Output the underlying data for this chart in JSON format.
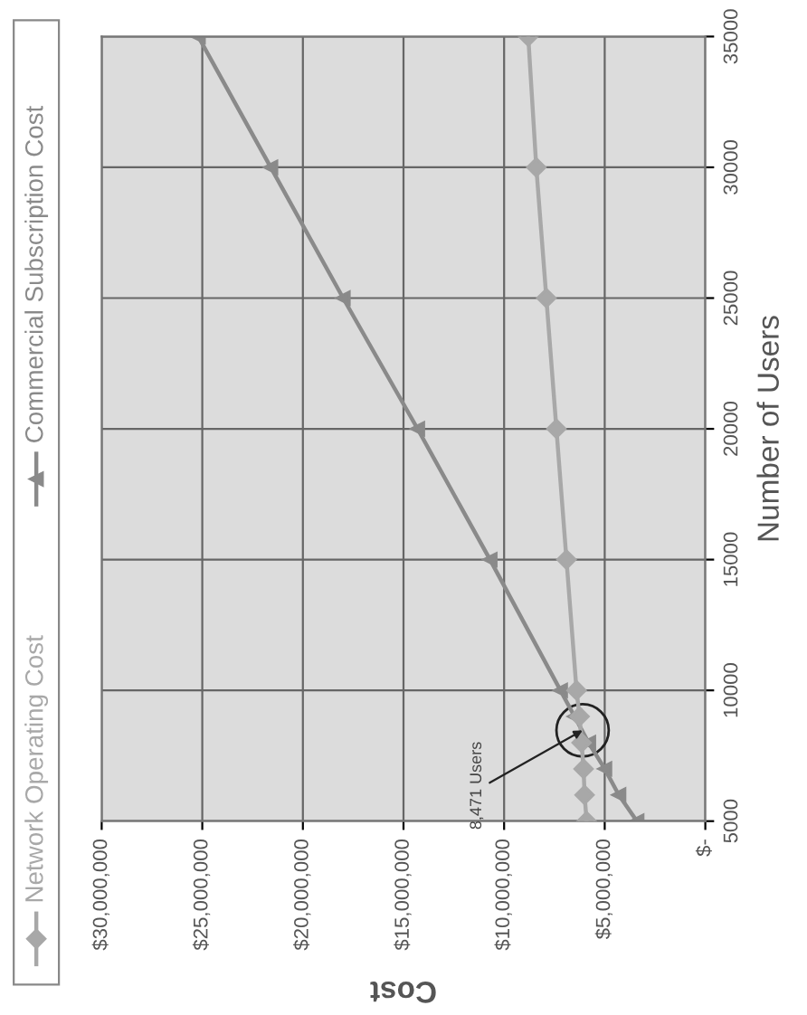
{
  "chart_data": {
    "type": "line",
    "xlabel": "Cost",
    "ylabel": "Number of Users",
    "series": [
      {
        "name": "Network Operating Cost",
        "color": "#a8a8a8",
        "marker": "diamond",
        "x": [
          5900000,
          6000000,
          6050000,
          6150000,
          6250000,
          6400000,
          6900000,
          7400000,
          7900000,
          8400000,
          8800000
        ],
        "values": [
          5000,
          6000,
          7000,
          8000,
          9000,
          10000,
          15000,
          20000,
          25000,
          30000,
          35000
        ]
      },
      {
        "name": "Commercial Subscription Cost",
        "color": "#8a8a8a",
        "marker": "triangle",
        "x": [
          3400000,
          4300000,
          5000000,
          5800000,
          6500000,
          7200000,
          10700000,
          14300000,
          18000000,
          21600000,
          25200000
        ],
        "values": [
          5000,
          6000,
          7000,
          8000,
          9000,
          10000,
          15000,
          20000,
          25000,
          30000,
          35000
        ]
      }
    ],
    "ylim": [
      5000,
      35000
    ],
    "yticks": [
      5000,
      10000,
      15000,
      20000,
      25000,
      30000,
      35000
    ],
    "xlim": [
      30000000,
      0
    ],
    "xticks": [
      {
        "value": 0,
        "label": "$-"
      },
      {
        "value": 5000000,
        "label": "$5,000,000"
      },
      {
        "value": 10000000,
        "label": "$10,000,000"
      },
      {
        "value": 15000000,
        "label": "$15,000,000"
      },
      {
        "value": 20000000,
        "label": "$20,000,000"
      },
      {
        "value": 25000000,
        "label": "$25,000,000"
      },
      {
        "value": 30000000,
        "label": "$30,000,000"
      }
    ],
    "annotations": [
      {
        "text": "8,471 Users",
        "x": 6100000,
        "y": 8471
      }
    ],
    "grid": true,
    "legend": "left"
  }
}
